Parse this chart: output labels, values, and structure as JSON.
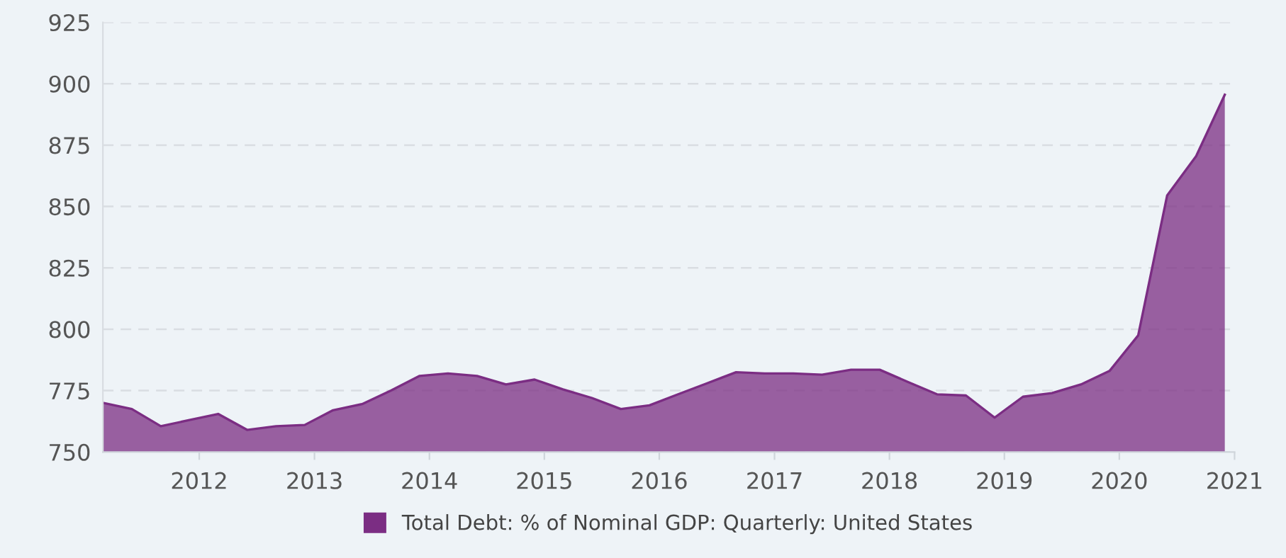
{
  "chart_data": {
    "type": "area",
    "x": [
      "2011-03",
      "2011-06",
      "2011-09",
      "2011-12",
      "2012-03",
      "2012-06",
      "2012-09",
      "2012-12",
      "2013-03",
      "2013-06",
      "2013-09",
      "2013-12",
      "2014-03",
      "2014-06",
      "2014-09",
      "2014-12",
      "2015-03",
      "2015-06",
      "2015-09",
      "2015-12",
      "2016-03",
      "2016-06",
      "2016-09",
      "2016-12",
      "2017-03",
      "2017-06",
      "2017-09",
      "2017-12",
      "2018-03",
      "2018-06",
      "2018-09",
      "2018-12",
      "2019-03",
      "2019-06",
      "2019-09",
      "2019-12",
      "2020-03",
      "2020-06",
      "2020-09",
      "2020-12"
    ],
    "series": [
      {
        "name": "Total Debt: % of Nominal GDP: Quarterly: United States",
        "color": "#7b2d83",
        "values": [
          770,
          767.5,
          760.5,
          763,
          765.5,
          759,
          760.5,
          761,
          767,
          769.5,
          775,
          781,
          782,
          781,
          777.5,
          779.5,
          775.5,
          772,
          767.5,
          769,
          773.5,
          778,
          782.5,
          782,
          782,
          781.5,
          783.5,
          783.5,
          778.5,
          773.5,
          773,
          764,
          772.5,
          774,
          777.5,
          783,
          797.5,
          854.5,
          870.5,
          895.5
        ]
      }
    ],
    "xlim": [
      "2011-03",
      "2021-01"
    ],
    "xticks": [
      {
        "value": "2012-01",
        "label": "2012"
      },
      {
        "value": "2013-01",
        "label": "2013"
      },
      {
        "value": "2014-01",
        "label": "2014"
      },
      {
        "value": "2015-01",
        "label": "2015"
      },
      {
        "value": "2016-01",
        "label": "2016"
      },
      {
        "value": "2017-01",
        "label": "2017"
      },
      {
        "value": "2018-01",
        "label": "2018"
      },
      {
        "value": "2019-01",
        "label": "2019"
      },
      {
        "value": "2020-01",
        "label": "2020"
      },
      {
        "value": "2021-01",
        "label": "2021"
      }
    ],
    "ylim": [
      750,
      925
    ],
    "yticks": [
      750,
      775,
      800,
      825,
      850,
      875,
      900,
      925
    ],
    "grid": "y",
    "legend": "bottom"
  }
}
